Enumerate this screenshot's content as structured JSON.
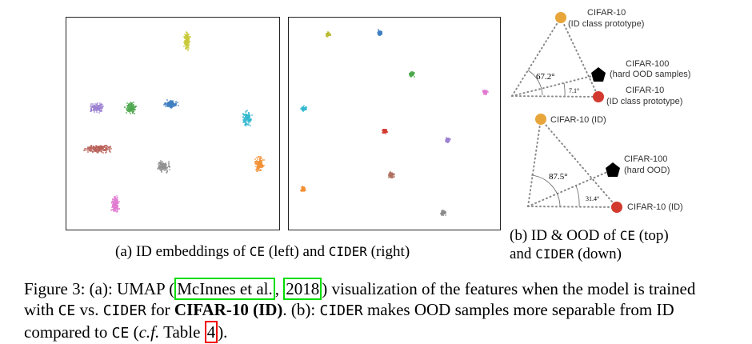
{
  "panel_a": {
    "caption_prefix": "(a) ID embeddings of",
    "caption_ce": "CE",
    "caption_mid": "(left) and",
    "caption_cider": "CIDER",
    "caption_suffix": "(right)",
    "left_umap": {
      "clusters": [
        {
          "name": "yellow",
          "color": "#c8c83a"
        },
        {
          "name": "purple",
          "color": "#9b7fd0"
        },
        {
          "name": "green",
          "color": "#4ea84e"
        },
        {
          "name": "blue",
          "color": "#3f7fc0"
        },
        {
          "name": "cyan",
          "color": "#33b8cf"
        },
        {
          "name": "brown-red",
          "color": "#b8625a"
        },
        {
          "name": "gray",
          "color": "#8f8f8f"
        },
        {
          "name": "orange",
          "color": "#f29035"
        },
        {
          "name": "pink",
          "color": "#e07ad0"
        }
      ]
    },
    "right_umap": {
      "clusters": [
        {
          "name": "yellow",
          "color": "#bcbc36"
        },
        {
          "name": "blue",
          "color": "#3f7fc0"
        },
        {
          "name": "green",
          "color": "#4ea84e"
        },
        {
          "name": "pink",
          "color": "#e07ad0"
        },
        {
          "name": "cyan",
          "color": "#33b8cf"
        },
        {
          "name": "red",
          "color": "#d23a30"
        },
        {
          "name": "purple",
          "color": "#9b7fd0"
        },
        {
          "name": "orange",
          "color": "#f29035"
        },
        {
          "name": "brown",
          "color": "#b07060"
        },
        {
          "name": "gray",
          "color": "#8a8a8a"
        }
      ]
    }
  },
  "panel_b": {
    "top": {
      "id_proto_label": "CIFAR-10",
      "id_proto_sub": "(ID class prototype)",
      "ood_label": "CIFAR-100",
      "ood_sub": "(hard OOD samples)",
      "id_proto2_label": "CIFAR-10",
      "id_proto2_sub": "(ID class prototype)",
      "angle_large": "67.2°",
      "angle_small": "7.1°"
    },
    "bottom": {
      "id_label": "CIFAR-10 (ID)",
      "ood_label": "CIFAR-100",
      "ood_sub": "(hard OOD)",
      "id2_label": "CIFAR-10 (ID)",
      "angle_large": "87.5°",
      "angle_small": "31.4°"
    },
    "colors": {
      "orange": "#e8a53a",
      "red": "#d23a30",
      "black": "#000000"
    },
    "caption_line1_prefix": "(b) ID & OOD of",
    "caption_ce": "CE",
    "caption_line1_suffix": "(top)",
    "caption_line2_prefix": "and",
    "caption_cider": "CIDER",
    "caption_line2_suffix": "(down)"
  },
  "figure_caption": {
    "p1": "Figure 3: (a): UMAP (",
    "cite_author": "McInnes et al.",
    "cite_sep": ",",
    "cite_year": "2018",
    "p2": ") visualization of the features when the model is trained",
    "p3": "with",
    "ce": "CE",
    "p4": "vs.",
    "cider": "CIDER",
    "p5": "for",
    "dataset": "CIFAR-10 (ID)",
    "p6": ". (b):",
    "cider2": "CIDER",
    "p7": "makes OOD samples more separable from ID",
    "p8": "compared to",
    "ce2": "CE",
    "p9": "(",
    "cf": "c.f.",
    "p10": " Table ",
    "table_ref": "4",
    "p11": ")."
  }
}
